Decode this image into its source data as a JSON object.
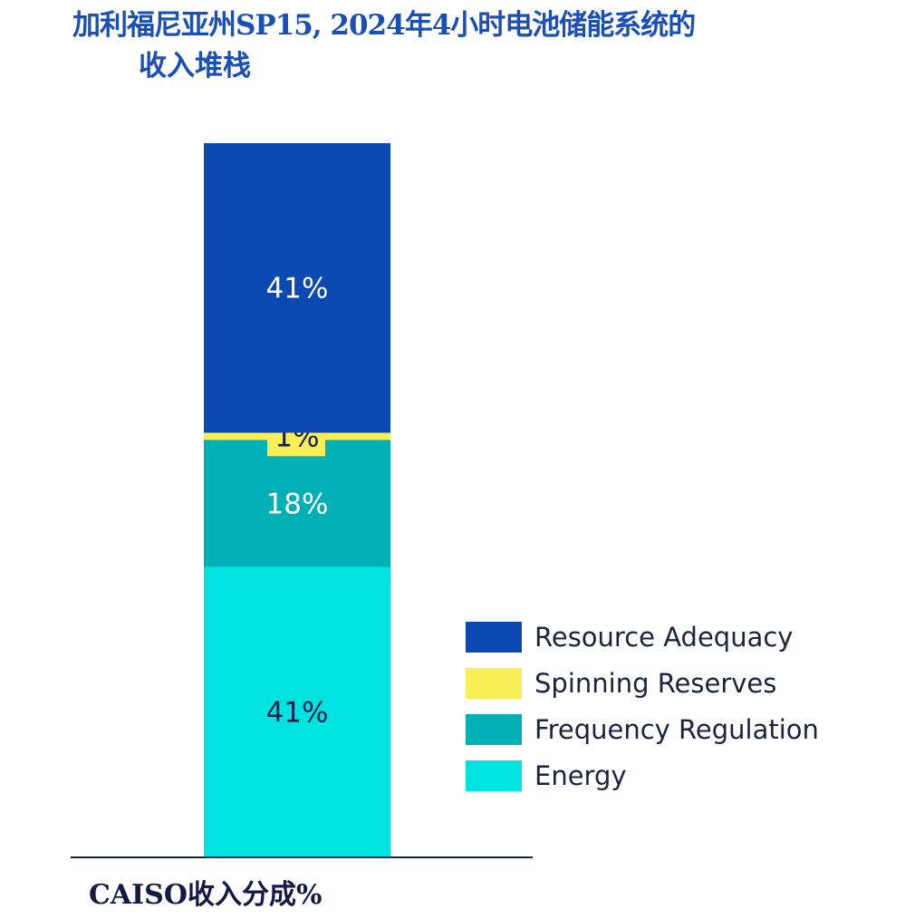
{
  "title_line1": "加利福尼亚州SP15, 2024年4小时电池储能系统的",
  "title_line2": "收入堆栈",
  "chart_data": {
    "type": "bar",
    "stacked": true,
    "title": "加利福尼亚州SP15, 2024年4小时电池储能系统的收入堆栈",
    "xlabel": "CAISO收入分成%",
    "ylabel": "",
    "categories": [
      "CAISO"
    ],
    "series": [
      {
        "name": "Energy",
        "values": [
          41
        ],
        "label": "41%",
        "color": "#00e3e1",
        "label_color": "#16204a"
      },
      {
        "name": "Frequency Regulation",
        "values": [
          18
        ],
        "label": "18%",
        "color": "#00b0b4",
        "label_color": "#ffffff"
      },
      {
        "name": "Spinning Reserves",
        "values": [
          1
        ],
        "label": "1%",
        "color": "#f7ef55",
        "label_color": "#16204a"
      },
      {
        "name": "Resource Adequacy",
        "values": [
          41
        ],
        "label": "41%",
        "color": "#0a48b2",
        "label_color": "#ffffff"
      }
    ],
    "legend_order": [
      "Resource Adequacy",
      "Spinning Reserves",
      "Frequency Regulation",
      "Energy"
    ],
    "legend_position": "right",
    "grid": false
  }
}
